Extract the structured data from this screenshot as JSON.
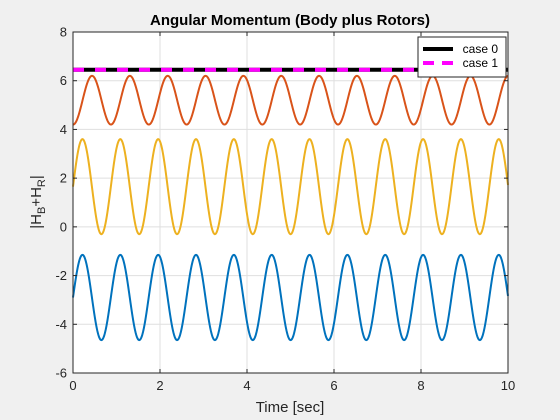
{
  "chart_data": {
    "type": "line",
    "title": "Angular Momentum (Body plus Rotors)",
    "xlabel": "Time [sec]",
    "ylabel": "|H_B+H_R|",
    "xlim": [
      0,
      10
    ],
    "ylim": [
      -6,
      8
    ],
    "xticks": [
      0,
      2,
      4,
      6,
      8,
      10
    ],
    "yticks": [
      -6,
      -4,
      -2,
      0,
      2,
      4,
      6,
      8
    ],
    "xtick_labels": [
      "0",
      "2",
      "4",
      "6",
      "8",
      "10"
    ],
    "ytick_labels": [
      "-6",
      "-4",
      "-2",
      "0",
      "2",
      "4",
      "6",
      "8"
    ],
    "grid": true,
    "legend_position": "top-right",
    "series": [
      {
        "name": "case 0",
        "color": "#000000",
        "style": "solid-thick",
        "constant": 6.45
      },
      {
        "name": "case 1",
        "color": "#ff00ff",
        "style": "dashed-thick",
        "constant": 6.45
      },
      {
        "color": "#d95319",
        "mean": 5.2,
        "amplitude": 1.0,
        "period": 0.87,
        "phase_time": 0.22
      },
      {
        "color": "#edb120",
        "mean": 1.65,
        "amplitude": 1.95,
        "period": 0.87,
        "phase_time": 0.0
      },
      {
        "color": "#0072bd",
        "mean": -2.9,
        "amplitude": 1.75,
        "period": 0.87,
        "phase_time": 0.0
      }
    ]
  }
}
